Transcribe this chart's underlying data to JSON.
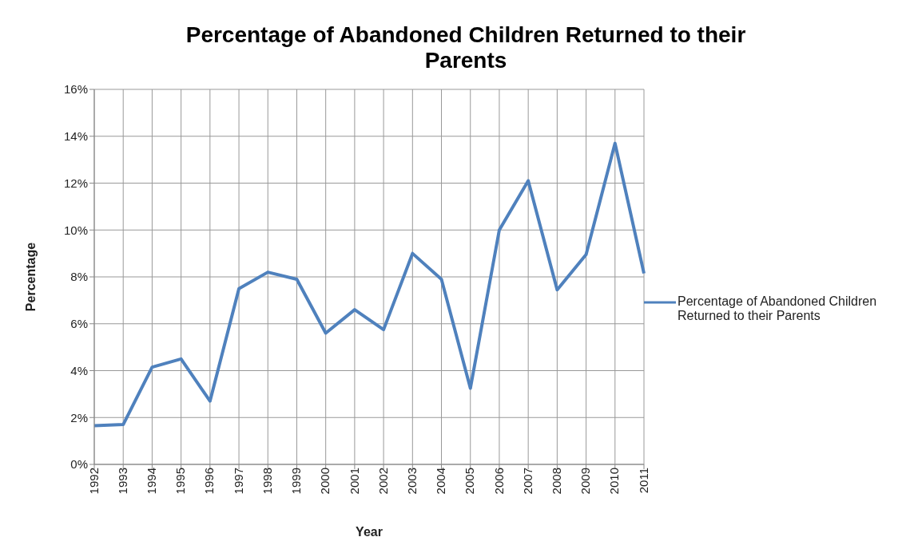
{
  "chart_data": {
    "type": "line",
    "title": "Percentage of Abandoned Children Returned to their Parents",
    "xlabel": "Year",
    "ylabel": "Percentage",
    "categories": [
      "1992",
      "1993",
      "1994",
      "1995",
      "1996",
      "1997",
      "1998",
      "1999",
      "2000",
      "2001",
      "2002",
      "2003",
      "2004",
      "2005",
      "2006",
      "2007",
      "2008",
      "2009",
      "2010",
      "2011"
    ],
    "series": [
      {
        "name": "Percentage of Abandoned Children Returned to their Parents",
        "color": "#4f81bd",
        "values": [
          1.65,
          1.7,
          4.15,
          4.5,
          2.7,
          7.5,
          8.2,
          7.9,
          5.6,
          6.6,
          5.75,
          9.0,
          7.9,
          3.25,
          10.0,
          12.1,
          7.45,
          8.95,
          13.7,
          8.15
        ]
      }
    ],
    "ylim": [
      0,
      16
    ],
    "yticks": [
      {
        "value": 0,
        "label": "0%"
      },
      {
        "value": 2,
        "label": "2%"
      },
      {
        "value": 4,
        "label": "4%"
      },
      {
        "value": 6,
        "label": "6%"
      },
      {
        "value": 8,
        "label": "8%"
      },
      {
        "value": 10,
        "label": "10%"
      },
      {
        "value": 12,
        "label": "12%"
      },
      {
        "value": 14,
        "label": "14%"
      },
      {
        "value": 16,
        "label": "16%"
      }
    ],
    "grid": true,
    "legend": "right",
    "marker": "none",
    "line_style": "solid"
  }
}
